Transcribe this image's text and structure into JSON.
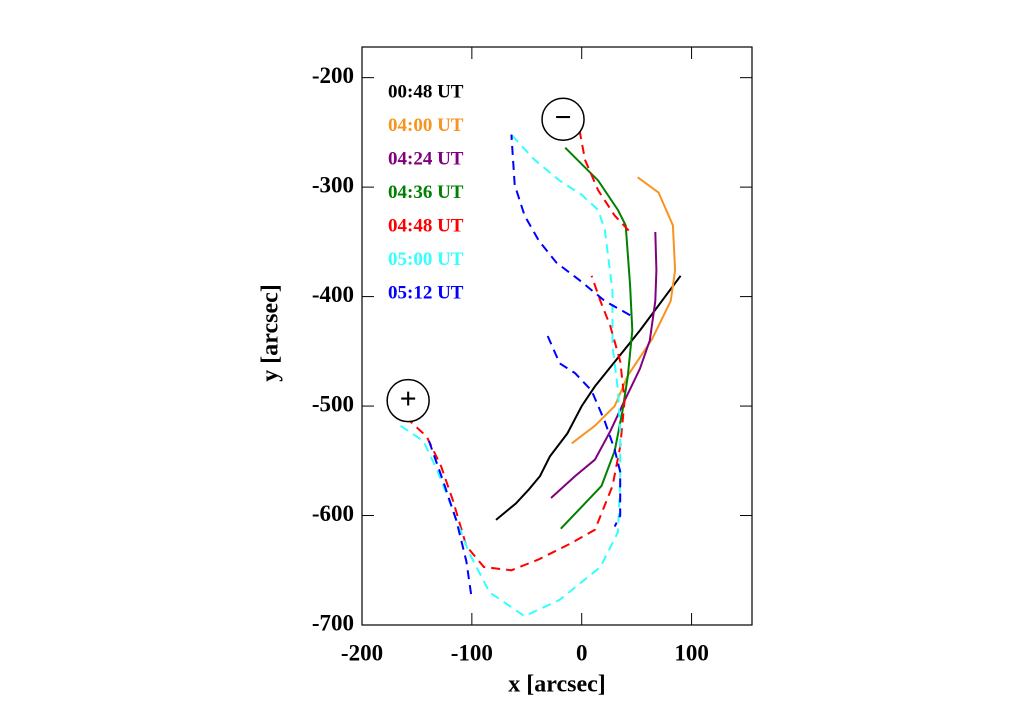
{
  "chart_data": {
    "type": "line",
    "xlabel": "x  [arcsec]",
    "ylabel": "y  [arcsec]",
    "xlim": [
      -200,
      155
    ],
    "ylim": [
      -700,
      -172
    ],
    "xticks": [
      -200,
      -100,
      0,
      100
    ],
    "yticks": [
      -700,
      -600,
      -500,
      -400,
      -300,
      -200
    ],
    "legend": "upper left",
    "series": [
      {
        "name": "00:48 UT",
        "color": "#000000",
        "dashed": false,
        "x": [
          -78,
          -60,
          -48,
          -38,
          -29,
          -13,
          0,
          12,
          53,
          90
        ],
        "values": [
          -604,
          -589,
          -576,
          -564,
          -546,
          -525,
          -500,
          -482,
          -431,
          -381
        ]
      },
      {
        "name": "04:00 UT",
        "color": "#f7931e",
        "dashed": false,
        "x": [
          -9,
          12,
          30,
          42,
          64,
          81,
          85,
          83,
          70,
          51
        ],
        "values": [
          -534,
          -518,
          -500,
          -472,
          -439,
          -404,
          -376,
          -335,
          -305,
          -291
        ]
      },
      {
        "name": "04:24 UT",
        "color": "#800080",
        "dashed": false,
        "x": [
          -28,
          -6,
          12,
          26,
          39,
          53,
          62,
          67,
          68,
          67
        ],
        "values": [
          -584,
          -564,
          -549,
          -523,
          -495,
          -466,
          -440,
          -404,
          -376,
          -341
        ]
      },
      {
        "name": "04:36 UT",
        "color": "#008000",
        "dashed": false,
        "x": [
          -19,
          0,
          18,
          30,
          37,
          42,
          46,
          44,
          40,
          33,
          15,
          -15
        ],
        "values": [
          -612,
          -592,
          -573,
          -541,
          -505,
          -472,
          -431,
          -390,
          -335,
          -321,
          -294,
          -264
        ]
      },
      {
        "name": "04:48 UT",
        "color": "#ff0000",
        "dashed": true,
        "x": [
          -172,
          -156,
          -141,
          -128,
          -117,
          -105,
          -89,
          -64,
          -39,
          -11,
          12,
          28,
          35,
          39,
          35,
          26,
          17,
          9,
          null,
          -2,
          3,
          15,
          30,
          44
        ],
        "values": [
          -503,
          -514,
          -528,
          -555,
          -587,
          -628,
          -647,
          -650,
          -640,
          -626,
          -613,
          -573,
          -537,
          -495,
          -459,
          -427,
          -404,
          -381,
          null,
          -248,
          -275,
          -303,
          -326,
          -341
        ]
      },
      {
        "name": "05:00 UT",
        "color": "#33ffff",
        "dashed": true,
        "x": [
          -165,
          -144,
          -131,
          -117,
          -103,
          -84,
          -52,
          -20,
          17,
          33,
          35,
          35,
          33,
          28,
          28,
          21,
          15,
          0,
          -20,
          -43,
          -66
        ],
        "values": [
          -518,
          -532,
          -560,
          -596,
          -633,
          -670,
          -692,
          -677,
          -647,
          -615,
          -569,
          -523,
          -486,
          -445,
          -395,
          -339,
          -321,
          -307,
          -294,
          -275,
          -250
        ]
      },
      {
        "name": "05:12 UT",
        "color": "#0000ff",
        "dashed": true,
        "x": [
          -139,
          -126,
          -114,
          -105,
          -100,
          null,
          -31,
          -20,
          -6,
          9,
          21,
          30,
          35,
          35,
          30,
          null,
          44,
          21,
          -2,
          -23,
          -39,
          -52,
          -61,
          -64
        ],
        "values": [
          -532,
          -569,
          -605,
          -642,
          -677,
          null,
          -436,
          -461,
          -470,
          -486,
          -514,
          -540,
          -560,
          -600,
          -610,
          null,
          -417,
          -404,
          -385,
          -369,
          -349,
          -326,
          -298,
          -252
        ]
      }
    ],
    "annotations": [
      {
        "text": "−",
        "x": -17,
        "y": -238
      },
      {
        "text": "+",
        "x": -158,
        "y": -495
      }
    ]
  }
}
